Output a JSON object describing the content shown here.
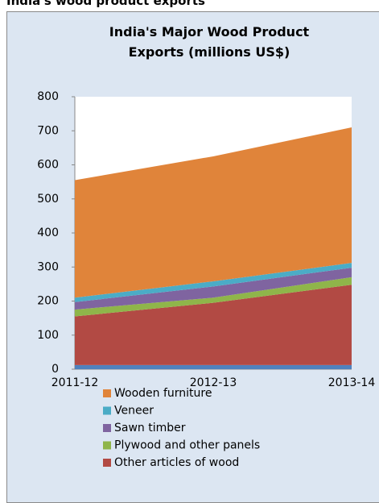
{
  "header": {
    "title": "India's wood product exports"
  },
  "chart_data": {
    "type": "stacked-area",
    "title": "India's Major Wood Product Exports (millions US$)",
    "categories": [
      "2011-12",
      "2012-13",
      "2013-14"
    ],
    "series": [
      {
        "color": "#4f81bd",
        "values": [
          12,
          12,
          12
        ]
      },
      {
        "name": "Other articles of wood",
        "color": "#b24a44",
        "values": [
          143,
          183,
          236
        ]
      },
      {
        "name": "Plywood and other panels",
        "color": "#8fb54a",
        "values": [
          20,
          15,
          22
        ]
      },
      {
        "name": "Sawn timber",
        "color": "#7f64a0",
        "values": [
          22,
          33,
          28
        ]
      },
      {
        "name": "Veneer",
        "color": "#4bacc6",
        "values": [
          13,
          15,
          14
        ]
      },
      {
        "name": "Wooden furniture",
        "color": "#e0843a",
        "values": [
          345,
          367,
          398
        ]
      }
    ],
    "ylim": [
      0,
      800
    ],
    "yticks": [
      0,
      100,
      200,
      300,
      400,
      500,
      600,
      700,
      800
    ],
    "grid": false
  }
}
